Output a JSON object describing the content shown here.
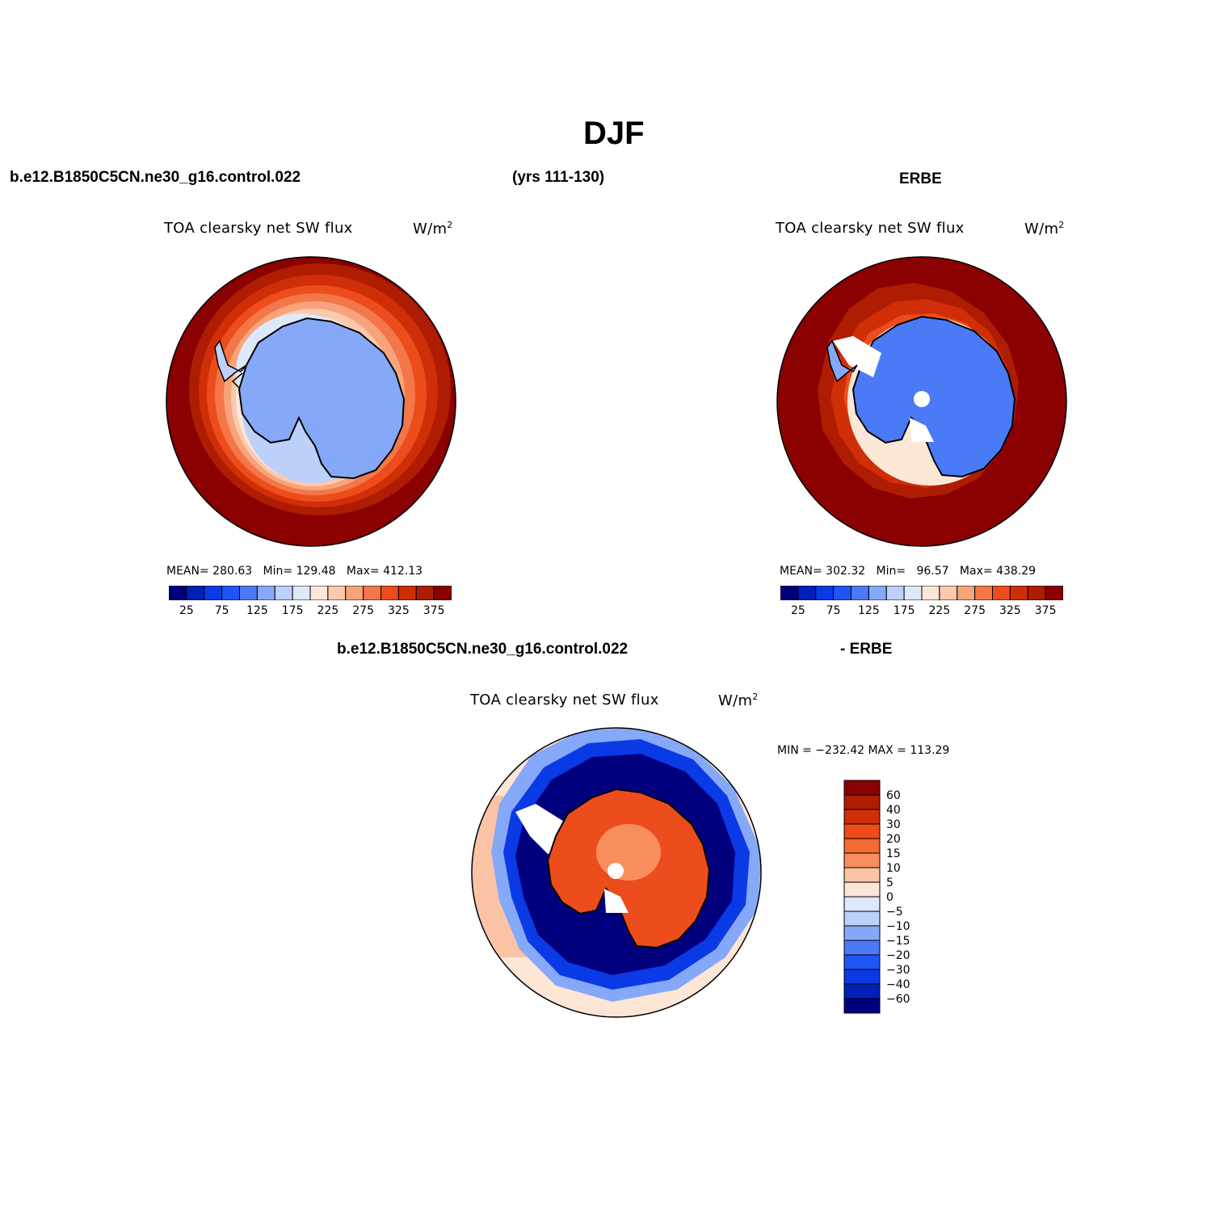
{
  "figure": {
    "title": "DJF",
    "header_left": "b.e12.B1850C5CN.ne30_g16.control.022",
    "header_mid": "(yrs 111-130)",
    "header_right": "ERBE",
    "diff_header_left": "b.e12.B1850C5CN.ne30_g16.control.022",
    "diff_header_right": "- ERBE"
  },
  "panels": {
    "model": {
      "title": "TOA clearsky net SW flux",
      "units_base": "W/m",
      "units_exp": "2",
      "mean_label": "MEAN=",
      "mean": "280.63",
      "min_label": "Min=",
      "min": "129.48",
      "max_label": "Max=",
      "max": "412.13"
    },
    "obs": {
      "title": "TOA clearsky net SW flux",
      "units_base": "W/m",
      "units_exp": "2",
      "mean_label": "MEAN=",
      "mean": "302.32",
      "min_label": "Min=",
      "min": "96.57",
      "max_label": "Max=",
      "max": "438.29"
    },
    "diff": {
      "title": "TOA clearsky net SW flux",
      "units_base": "W/m",
      "units_exp": "2",
      "minmax": "MIN = −232.42 MAX = 113.29"
    }
  },
  "colorbar_abs": {
    "colors": [
      "#00007f",
      "#0020b8",
      "#0a3ae6",
      "#1f55f4",
      "#4a7af6",
      "#86a8f8",
      "#bcd0fa",
      "#dde9fb",
      "#fde8d8",
      "#fbc9ad",
      "#f7a47c",
      "#f37748",
      "#ed4c1d",
      "#d02e06",
      "#ae1c02",
      "#8b0000"
    ],
    "tick_labels": [
      "25",
      "75",
      "125",
      "175",
      "225",
      "275",
      "325",
      "375"
    ]
  },
  "colorbar_diff": {
    "colors": [
      "#8b0000",
      "#ae1c02",
      "#d02e06",
      "#f04a16",
      "#f46a34",
      "#f88e5e",
      "#fbc3a6",
      "#fde6d6",
      "#dde9fb",
      "#bcd0fa",
      "#86a8f8",
      "#4a7af6",
      "#1f55f4",
      "#0a3ae6",
      "#0020b8",
      "#00007f"
    ],
    "tick_labels": [
      "60",
      "40",
      "30",
      "20",
      "15",
      "10",
      "5",
      "0",
      "−5",
      "−10",
      "−15",
      "−20",
      "−30",
      "−40",
      "−60"
    ]
  },
  "colors": {
    "ocean_warm": "#8b0000",
    "land_model": "#86a8f8",
    "land_obs": "#4a7af6",
    "diff_ocean": "#00007f",
    "diff_land": "#ed4c1d",
    "coastline": "#000000"
  }
}
